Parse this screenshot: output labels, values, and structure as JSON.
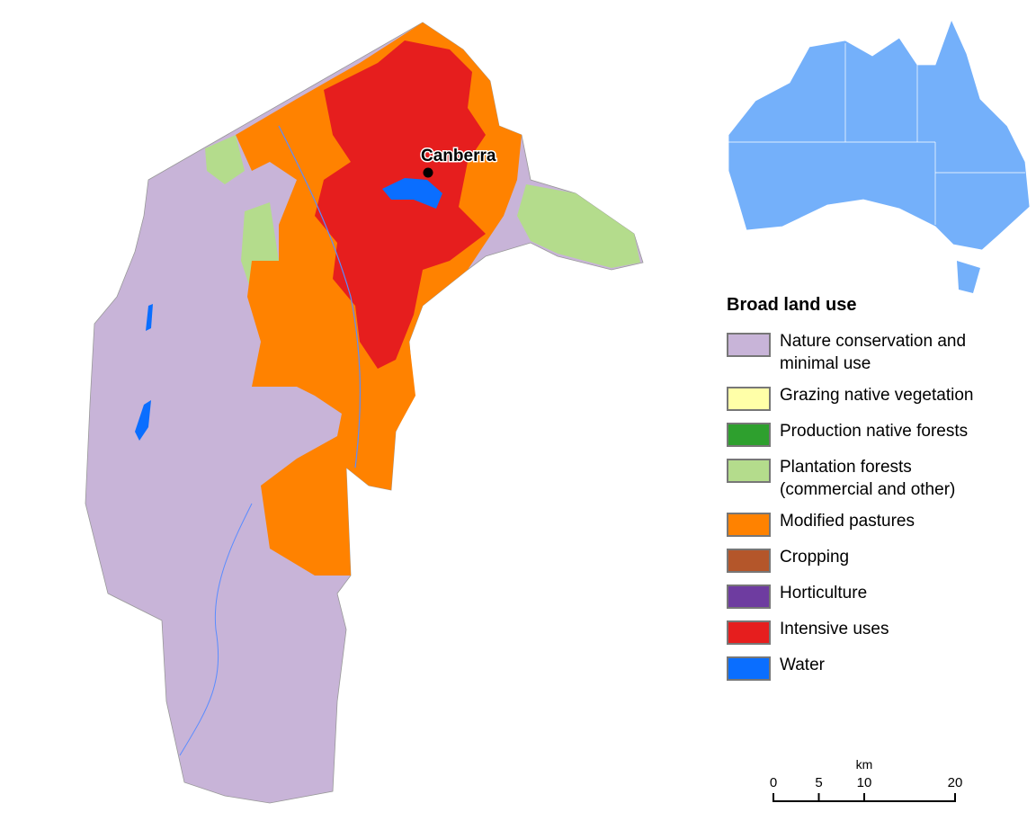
{
  "map": {
    "city": "Canberra",
    "legend": {
      "title": "Broad land use",
      "items": [
        {
          "label": "Nature conservation and minimal use",
          "color": "#c8b4d8"
        },
        {
          "label": "Grazing native vegetation",
          "color": "#ffffa8"
        },
        {
          "label": "Production native forests",
          "color": "#2ea02e"
        },
        {
          "label": "Plantation forests (commercial and other)",
          "color": "#b4dc8c"
        },
        {
          "label": "Modified pastures",
          "color": "#ff8200"
        },
        {
          "label": "Cropping",
          "color": "#b4562a"
        },
        {
          "label": "Horticulture",
          "color": "#6e3ca0"
        },
        {
          "label": "Intensive uses",
          "color": "#e61e1e"
        },
        {
          "label": "Water",
          "color": "#0a6eff"
        }
      ]
    },
    "scale_bar": {
      "unit": "km",
      "range": [
        0,
        20
      ],
      "ticks": [
        0,
        5,
        10,
        20
      ]
    }
  }
}
